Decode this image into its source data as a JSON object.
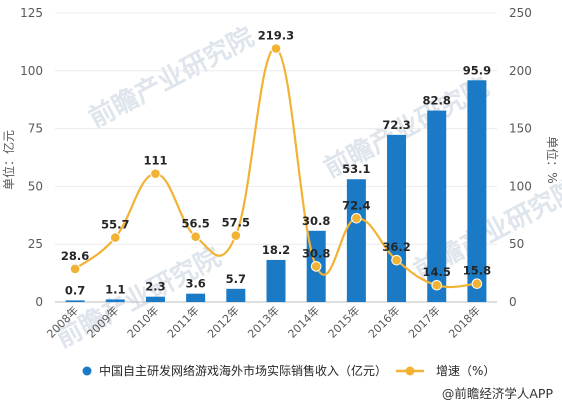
{
  "chart_data": {
    "type": "bar+line",
    "categories": [
      "2008年",
      "2009年",
      "2010年",
      "2011年",
      "2012年",
      "2013年",
      "2014年",
      "2015年",
      "2016年",
      "2017年",
      "2018年"
    ],
    "series": [
      {
        "name": "中国自主研发网络游戏海外市场实际销售收入（亿元）",
        "type": "bar",
        "axis": "left",
        "color": "#1a7ac6",
        "values": [
          0.7,
          1.1,
          2.3,
          3.6,
          5.7,
          18.2,
          30.8,
          53.1,
          72.3,
          82.8,
          95.9
        ]
      },
      {
        "name": "增速（%）",
        "type": "line",
        "axis": "right",
        "color": "#f2b233",
        "values": [
          28.6,
          55.7,
          111,
          56.5,
          57.5,
          219.3,
          30.8,
          72.4,
          36.2,
          14.5,
          15.8
        ]
      }
    ],
    "ylabel": "单位：亿元",
    "y2label": "单位：%",
    "ylim": [
      0,
      125
    ],
    "y2lim": [
      0,
      250
    ],
    "yticks": [
      0,
      25,
      50,
      75,
      100,
      125
    ],
    "y2ticks": [
      0,
      50,
      100,
      150,
      200,
      250
    ],
    "legend_position": "bottom"
  },
  "watermark": "前瞻产业研究院",
  "source": "@前瞻经济学人APP"
}
